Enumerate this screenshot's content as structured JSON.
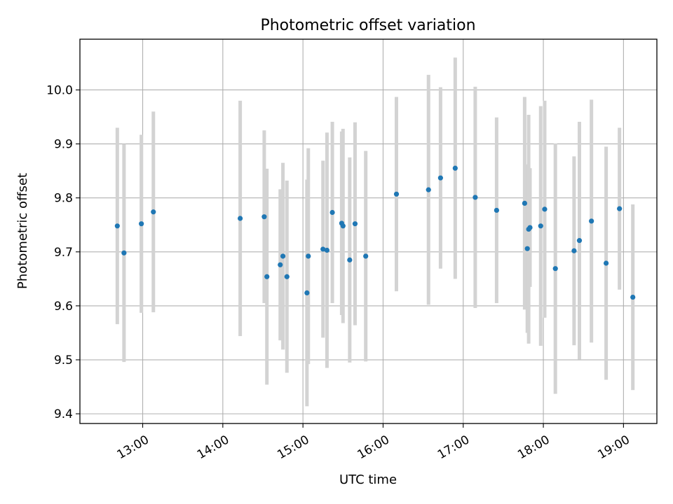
{
  "chart_data": {
    "type": "scatter",
    "title": "Photometric offset variation",
    "xlabel": "UTC time",
    "ylabel": "Photometric offset",
    "grid": true,
    "legend": "none",
    "xlim": [
      "12:13",
      "19:25"
    ],
    "ylim": [
      9.382,
      10.094
    ],
    "x_ticks": [
      "13:00",
      "14:00",
      "15:00",
      "16:00",
      "17:00",
      "18:00",
      "19:00"
    ],
    "y_ticks": [
      "9.4",
      "9.5",
      "9.6",
      "9.7",
      "9.8",
      "9.9",
      "10.0"
    ],
    "colors": {
      "point": "#1f77b4",
      "errorbar": "#d3d3d3",
      "grid": "#b0b0b0"
    },
    "series": [
      {
        "points": [
          {
            "x": "12:41",
            "y": 9.748,
            "err": 0.182
          },
          {
            "x": "12:46",
            "y": 9.698,
            "err": 0.202
          },
          {
            "x": "12:59",
            "y": 9.752,
            "err": 0.165
          },
          {
            "x": "13:08",
            "y": 9.774,
            "err": 0.186
          },
          {
            "x": "14:13",
            "y": 9.762,
            "err": 0.218
          },
          {
            "x": "14:31",
            "y": 9.765,
            "err": 0.16
          },
          {
            "x": "14:33",
            "y": 9.654,
            "err": 0.2
          },
          {
            "x": "14:43",
            "y": 9.676,
            "err": 0.14
          },
          {
            "x": "14:45",
            "y": 9.692,
            "err": 0.173
          },
          {
            "x": "14:48",
            "y": 9.654,
            "err": 0.178
          },
          {
            "x": "15:03",
            "y": 9.624,
            "err": 0.21
          },
          {
            "x": "15:04",
            "y": 9.692,
            "err": 0.2
          },
          {
            "x": "15:15",
            "y": 9.705,
            "err": 0.164
          },
          {
            "x": "15:18",
            "y": 9.703,
            "err": 0.218
          },
          {
            "x": "15:22",
            "y": 9.773,
            "err": 0.168
          },
          {
            "x": "15:29",
            "y": 9.753,
            "err": 0.17
          },
          {
            "x": "15:30",
            "y": 9.748,
            "err": 0.18
          },
          {
            "x": "15:35",
            "y": 9.685,
            "err": 0.19
          },
          {
            "x": "15:39",
            "y": 9.752,
            "err": 0.188
          },
          {
            "x": "15:47",
            "y": 9.692,
            "err": 0.195
          },
          {
            "x": "16:10",
            "y": 9.807,
            "err": 0.18
          },
          {
            "x": "16:34",
            "y": 9.815,
            "err": 0.213
          },
          {
            "x": "16:43",
            "y": 9.837,
            "err": 0.168
          },
          {
            "x": "16:54",
            "y": 9.855,
            "err": 0.205
          },
          {
            "x": "17:09",
            "y": 9.801,
            "err": 0.205
          },
          {
            "x": "17:25",
            "y": 9.777,
            "err": 0.172
          },
          {
            "x": "17:46",
            "y": 9.79,
            "err": 0.197
          },
          {
            "x": "17:48",
            "y": 9.706,
            "err": 0.156
          },
          {
            "x": "17:49",
            "y": 9.742,
            "err": 0.212
          },
          {
            "x": "17:50",
            "y": 9.745,
            "err": 0.11
          },
          {
            "x": "17:58",
            "y": 9.748,
            "err": 0.222
          },
          {
            "x": "18:01",
            "y": 9.779,
            "err": 0.201
          },
          {
            "x": "18:09",
            "y": 9.669,
            "err": 0.232
          },
          {
            "x": "18:23",
            "y": 9.702,
            "err": 0.175
          },
          {
            "x": "18:27",
            "y": 9.721,
            "err": 0.22
          },
          {
            "x": "18:36",
            "y": 9.757,
            "err": 0.225
          },
          {
            "x": "18:47",
            "y": 9.679,
            "err": 0.216
          },
          {
            "x": "18:57",
            "y": 9.78,
            "err": 0.15
          },
          {
            "x": "19:07",
            "y": 9.616,
            "err": 0.172
          }
        ]
      }
    ]
  }
}
